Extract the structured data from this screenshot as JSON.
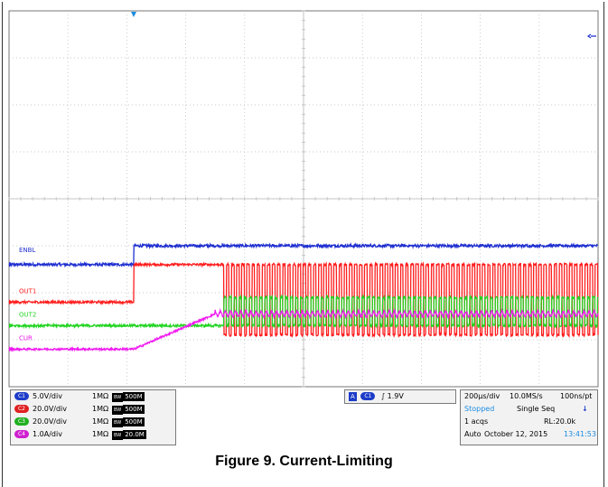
{
  "caption": "Figure 9. Current-Limiting",
  "chart_data": {
    "type": "line",
    "x_divisions": 10,
    "y_divisions": 8,
    "grid": true,
    "series": [
      {
        "name": "ENBL",
        "color": "#1f2fd0",
        "pattern": "step",
        "low_level": -1.4,
        "high_level": -1.0,
        "step_time": -2.88
      },
      {
        "name": "OUT1",
        "color": "#ff1e1e",
        "pattern": "step-then-switching",
        "low_level": -2.2,
        "high_level": -1.4,
        "step_time": -2.88,
        "switch_start": -1.4,
        "switch_low": -2.9
      },
      {
        "name": "OUT2",
        "color": "#22d422",
        "pattern": "switching",
        "low_level": -2.7,
        "high_level": -2.1,
        "switch_start": -1.4
      },
      {
        "name": "CUR",
        "color": "#f019f0",
        "pattern": "ramp-then-ripple",
        "low_level": -3.2,
        "high_level": -2.45,
        "ramp_start": -2.88,
        "ramp_end": -1.5
      }
    ]
  },
  "channels": [
    {
      "id": "C1",
      "color": "#1c3cc8",
      "scale": "5.0V/div",
      "impedance": "1MΩ",
      "bw_tag": "BW",
      "bandwidth": "500M"
    },
    {
      "id": "C2",
      "color": "#e02020",
      "scale": "20.0V/div",
      "impedance": "1MΩ",
      "bw_tag": "BW",
      "bandwidth": "500M"
    },
    {
      "id": "C3",
      "color": "#20b020",
      "scale": "20.0V/div",
      "impedance": "1MΩ",
      "bw_tag": "BW",
      "bandwidth": "500M"
    },
    {
      "id": "C4",
      "color": "#d020d0",
      "scale": "1.0A/div",
      "impedance": "1MΩ",
      "bw_tag": "BW",
      "bandwidth": "20.0M"
    }
  ],
  "trigger": {
    "mode_badge": "A",
    "source": "C1",
    "slope": "∫",
    "level": "1.9V"
  },
  "acquisition": {
    "timebase": "200µs/div",
    "sample_rate": "10.0MS/s",
    "resolution": "100ns/pt",
    "state": "Stopped",
    "sequence": "Single Seq",
    "acqs": "1 acqs",
    "record_length": "RL:20.0k",
    "auto": "Auto",
    "date": "October 12, 2015",
    "time": "13:41:53"
  },
  "colors": {
    "grid": "#b8b8b8",
    "plot_bg": "#ffffff",
    "accent_blue": "#1c8ce0"
  }
}
